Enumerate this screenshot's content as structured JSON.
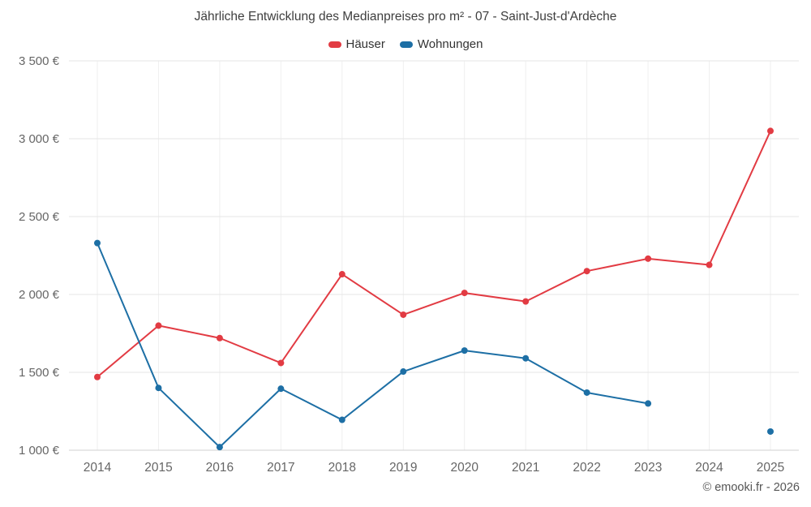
{
  "title": "Jährliche Entwicklung des Medianpreises pro m² - 07 - Saint-Just-d'Ardèche",
  "footer": "© emooki.fr - 2026",
  "chart_data": {
    "type": "line",
    "categories": [
      "2014",
      "2015",
      "2016",
      "2017",
      "2018",
      "2019",
      "2020",
      "2021",
      "2022",
      "2023",
      "2024",
      "2025"
    ],
    "series": [
      {
        "name": "Häuser",
        "color": "#e23b43",
        "values": [
          1470,
          1800,
          1720,
          1560,
          2130,
          1870,
          2010,
          1955,
          2150,
          2230,
          2190,
          3050
        ]
      },
      {
        "name": "Wohnungen",
        "color": "#1d6fa5",
        "values": [
          2330,
          1400,
          1020,
          1395,
          1195,
          1505,
          1640,
          1590,
          1370,
          1300,
          null,
          1120
        ]
      }
    ],
    "title": "Jährliche Entwicklung des Medianpreises pro m² - 07 - Saint-Just-d'Ardèche",
    "xlabel": "",
    "ylabel": "",
    "ylim": [
      1000,
      3500
    ],
    "yticks": [
      {
        "value": 1000,
        "label": "1 000 €"
      },
      {
        "value": 1500,
        "label": "1 500 €"
      },
      {
        "value": 2000,
        "label": "2 000 €"
      },
      {
        "value": 2500,
        "label": "2 500 €"
      },
      {
        "value": 3000,
        "label": "3 000 €"
      },
      {
        "value": 3500,
        "label": "3 500 €"
      }
    ],
    "grid": true,
    "legend_position": "top"
  }
}
